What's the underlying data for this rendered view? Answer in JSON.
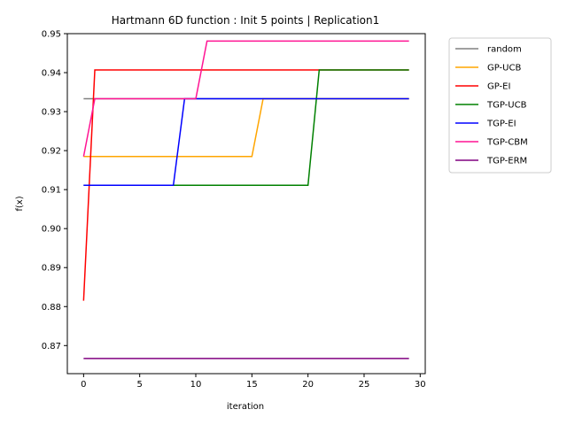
{
  "chart_data": {
    "type": "line",
    "title": "Hartmann 6D function : Init 5 points | Replication1",
    "xlabel": "iteration",
    "ylabel": "f(x)",
    "xlim": [
      -1.45,
      30.45
    ],
    "ylim": [
      0.8628,
      0.95
    ],
    "xticks": [
      0,
      5,
      10,
      15,
      20,
      25,
      30
    ],
    "yticks": [
      0.87,
      0.88,
      0.89,
      0.9,
      0.91,
      0.92,
      0.93,
      0.94,
      0.95
    ],
    "ytick_labels": [
      "0.87",
      "0.88",
      "0.89",
      "0.90",
      "0.91",
      "0.92",
      "0.93",
      "0.94",
      "0.95"
    ],
    "grid": false,
    "legend_position": "outside-right",
    "series": [
      {
        "name": "random",
        "color": "#808080",
        "points": [
          [
            0,
            0.9333
          ],
          [
            29,
            0.9333
          ]
        ]
      },
      {
        "name": "GP-UCB",
        "color": "#ffa500",
        "points": [
          [
            0,
            0.9185
          ],
          [
            15,
            0.9185
          ],
          [
            16,
            0.9333
          ],
          [
            29,
            0.9333
          ]
        ]
      },
      {
        "name": "GP-EI",
        "color": "#ff0000",
        "points": [
          [
            0,
            0.8815
          ],
          [
            1,
            0.9407
          ],
          [
            29,
            0.9407
          ]
        ]
      },
      {
        "name": "TGP-UCB",
        "color": "#008000",
        "points": [
          [
            0,
            0.9111
          ],
          [
            20,
            0.9111
          ],
          [
            21,
            0.9407
          ],
          [
            29,
            0.9407
          ]
        ]
      },
      {
        "name": "TGP-EI",
        "color": "#0000ff",
        "points": [
          [
            0,
            0.9111
          ],
          [
            8,
            0.9111
          ],
          [
            9,
            0.9333
          ],
          [
            29,
            0.9333
          ]
        ]
      },
      {
        "name": "TGP-CBM",
        "color": "#ff1493",
        "points": [
          [
            0,
            0.9185
          ],
          [
            1,
            0.9333
          ],
          [
            10,
            0.9333
          ],
          [
            11,
            0.9481
          ],
          [
            29,
            0.9481
          ]
        ]
      },
      {
        "name": "TGP-ERM",
        "color": "#800080",
        "points": [
          [
            0,
            0.8667
          ],
          [
            29,
            0.8667
          ]
        ]
      }
    ]
  }
}
